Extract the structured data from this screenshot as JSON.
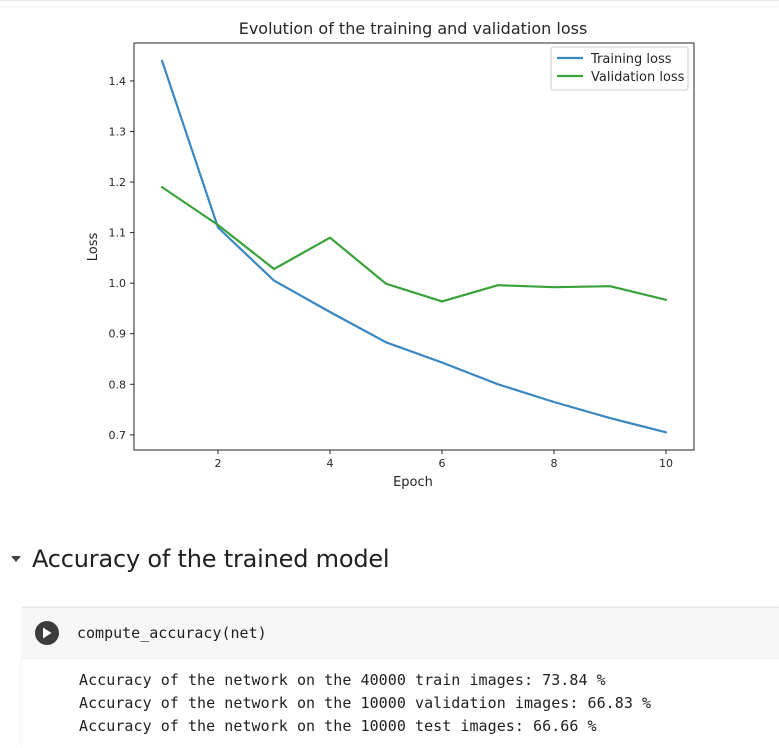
{
  "chart_data": {
    "type": "line",
    "title": "Evolution of the training and validation loss",
    "xlabel": "Epoch",
    "ylabel": "Loss",
    "x": [
      1,
      2,
      3,
      4,
      5,
      6,
      7,
      8,
      9,
      10
    ],
    "xlim": [
      0.5,
      10.5
    ],
    "ylim": [
      0.67,
      1.475
    ],
    "xticks": [
      2,
      4,
      6,
      8,
      10
    ],
    "yticks": [
      0.7,
      0.8,
      0.9,
      1.0,
      1.1,
      1.2,
      1.3,
      1.4
    ],
    "ytick_labels": [
      "0.7",
      "0.8",
      "0.9",
      "1.0",
      "1.1",
      "1.2",
      "1.3",
      "1.4"
    ],
    "grid": false,
    "legend_position": "top-right",
    "series": [
      {
        "name": "Training loss",
        "color": "#3a87c2",
        "values": [
          1.44,
          1.11,
          1.005,
          0.943,
          0.883,
          0.843,
          0.8,
          0.765,
          0.733,
          0.705
        ]
      },
      {
        "name": "Validation loss",
        "color": "#3aa23a",
        "values": [
          1.19,
          1.115,
          1.028,
          1.09,
          0.999,
          0.964,
          0.996,
          0.992,
          0.994,
          0.967
        ]
      }
    ]
  },
  "section": {
    "title": "Accuracy of the trained model"
  },
  "cell": {
    "code": "compute_accuracy(net)",
    "output": [
      "Accuracy of the network on the 40000 train images: 73.84 %",
      "Accuracy of the network on the 10000 validation images: 66.83 %",
      "Accuracy of the network on the 10000 test images: 66.66 %"
    ]
  }
}
